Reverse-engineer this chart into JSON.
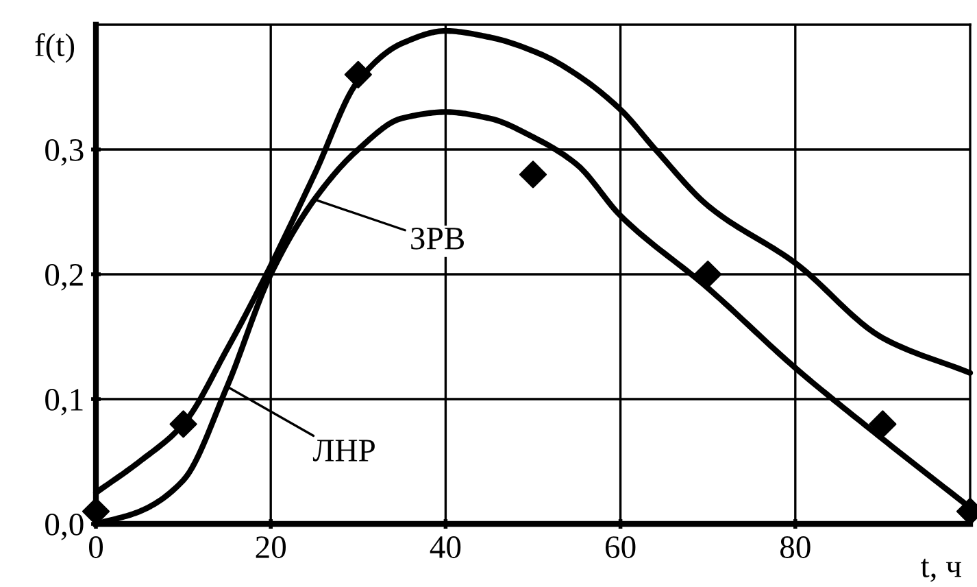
{
  "chart_data": {
    "type": "line",
    "xlabel": "t, ч",
    "ylabel": "f(t)",
    "xlim": [
      0,
      100
    ],
    "ylim": [
      0,
      0.4
    ],
    "xticks": [
      0,
      20,
      40,
      60,
      80
    ],
    "yticks": [
      {
        "value": 0,
        "label": "0,0"
      },
      {
        "value": 0.1,
        "label": "0,1"
      },
      {
        "value": 0.2,
        "label": "0,2"
      },
      {
        "value": 0.3,
        "label": "0,3"
      }
    ],
    "grid": true,
    "line_style": "solid",
    "series": [
      {
        "color": "#000000",
        "marker": "none",
        "x": [
          0,
          5,
          10,
          15,
          19.5,
          25,
          30,
          35,
          40,
          45,
          51,
          55,
          60,
          64,
          70,
          80,
          90,
          100
        ],
        "values": [
          0.025,
          0.05,
          0.08,
          0.14,
          0.2,
          0.28,
          0.355,
          0.385,
          0.395,
          0.39,
          0.376,
          0.36,
          0.332,
          0.3,
          0.255,
          0.209,
          0.149,
          0.121
        ]
      },
      {
        "color": "#000000",
        "marker": "none",
        "x": [
          0,
          5,
          10,
          15,
          20,
          25,
          30,
          35,
          40,
          45,
          50,
          55,
          60,
          70,
          80,
          90,
          100
        ],
        "values": [
          0,
          0.01,
          0.035,
          0.11,
          0.2,
          0.26,
          0.3,
          0.325,
          0.33,
          0.325,
          0.31,
          0.288,
          0.247,
          0.189,
          0.125,
          0.068,
          0.013
        ]
      },
      {
        "type": "scatter",
        "color": "#000000",
        "marker": "diamond",
        "x": [
          0,
          10,
          30,
          50,
          70,
          90,
          100
        ],
        "values": [
          0.01,
          0.08,
          0.36,
          0.28,
          0.2,
          0.08,
          0.01
        ]
      }
    ],
    "annotations": [
      {
        "text": "ЗРВ",
        "x": 25,
        "y": 0.26
      },
      {
        "text": "ЛНР",
        "x": 15,
        "y": 0.11
      }
    ]
  }
}
